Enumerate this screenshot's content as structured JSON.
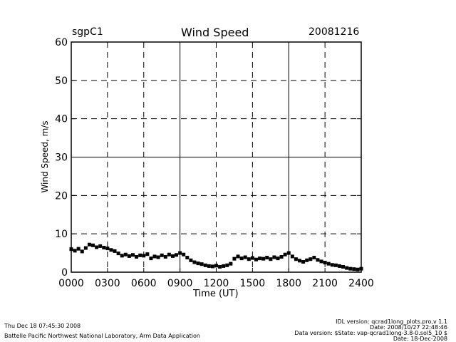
{
  "header": {
    "site": "sgpC1",
    "title": "Wind Speed",
    "date": "20081216"
  },
  "footer": {
    "timestamp": "Thu Dec 18 07:45:30 2008",
    "lab": "Battelle Pacific Northwest National Laboratory, Arm Data Application",
    "idl_version": "IDL version: qcrad1long_plots.pro,v 1.1",
    "idl_date": "Date: 2008/10/27 22:48:46",
    "data_version": "Data version: $State: vap-qcrad1long-3.8-0.sol5_10 $",
    "data_date": "Date: 18-Dec-2008"
  },
  "chart_data": {
    "type": "scatter",
    "title": "Wind Speed",
    "xlabel": "Time (UT)",
    "ylabel": "Wind Speed, m/s",
    "xlim": [
      0,
      2400
    ],
    "ylim": [
      0,
      60
    ],
    "x_ticks": [
      "0000",
      "0300",
      "0600",
      "0900",
      "1200",
      "1500",
      "1800",
      "2100",
      "2400"
    ],
    "y_ticks": [
      "0",
      "10",
      "20",
      "30",
      "40",
      "50",
      "60"
    ],
    "grid": true,
    "series": [
      {
        "x": [
          0,
          30,
          60,
          90,
          120,
          150,
          180,
          210,
          240,
          270,
          300,
          330,
          360,
          390,
          420,
          450,
          480,
          510,
          540,
          570,
          600,
          630,
          660,
          690,
          720,
          750,
          780,
          810,
          840,
          870,
          900,
          930,
          960,
          990,
          1020,
          1050,
          1080,
          1110,
          1140,
          1170,
          1200,
          1230,
          1260,
          1290,
          1320,
          1350,
          1380,
          1410,
          1440,
          1470,
          1500,
          1530,
          1560,
          1590,
          1620,
          1650,
          1680,
          1710,
          1740,
          1770,
          1800,
          1830,
          1860,
          1890,
          1920,
          1950,
          1980,
          2010,
          2040,
          2070,
          2100,
          2130,
          2160,
          2190,
          2220,
          2250,
          2280,
          2310,
          2340,
          2370,
          2400
        ],
        "y": [
          6.0,
          5.6,
          6.1,
          5.4,
          6.3,
          7.2,
          7.0,
          6.5,
          6.8,
          6.4,
          6.2,
          5.8,
          5.5,
          4.9,
          4.3,
          4.6,
          4.2,
          4.5,
          4.0,
          4.4,
          4.3,
          4.7,
          3.6,
          4.1,
          3.9,
          4.4,
          4.0,
          4.6,
          4.2,
          4.5,
          5.0,
          4.6,
          3.8,
          3.1,
          2.6,
          2.3,
          2.1,
          1.8,
          1.6,
          1.5,
          1.7,
          1.4,
          1.6,
          1.8,
          2.2,
          3.5,
          4.1,
          3.6,
          3.9,
          3.4,
          3.7,
          3.3,
          3.6,
          3.5,
          3.8,
          3.4,
          3.9,
          3.6,
          4.0,
          4.6,
          5.0,
          4.1,
          3.4,
          3.0,
          2.7,
          3.1,
          3.4,
          3.8,
          3.2,
          2.8,
          2.5,
          2.2,
          1.9,
          1.8,
          1.6,
          1.4,
          1.1,
          0.9,
          0.8,
          0.7,
          0.9
        ]
      }
    ]
  }
}
